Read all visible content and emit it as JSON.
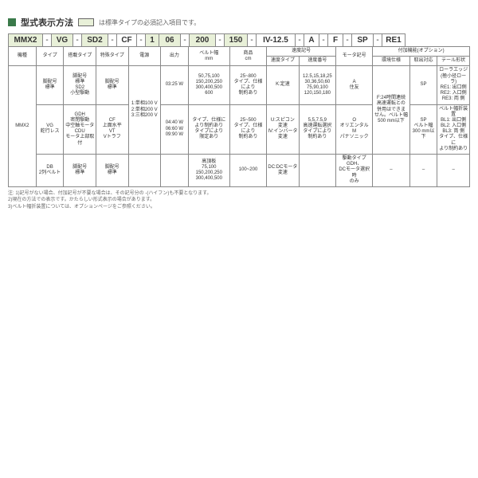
{
  "title": "型式表示方法",
  "tagline": "は標準タイプの必須記入項目です。",
  "model": [
    "MMX2",
    "-",
    "VG",
    "-",
    "SD2",
    "-",
    "CF",
    "-",
    "1",
    "06",
    "-",
    "200",
    "-",
    "150",
    "-",
    "IV-12.5",
    "-",
    "A",
    "-",
    "F",
    "-",
    "SP",
    "-",
    "RE1"
  ],
  "highlight": [
    true,
    false,
    true,
    false,
    true,
    false,
    false,
    false,
    true,
    true,
    false,
    true,
    false,
    true,
    false,
    false,
    false,
    false,
    false,
    false,
    false,
    false,
    false,
    false
  ],
  "widths": [
    38,
    8,
    22,
    8,
    28,
    8,
    20,
    8,
    12,
    22,
    8,
    28,
    8,
    24,
    8,
    44,
    8,
    14,
    8,
    14,
    8,
    22,
    8,
    24
  ],
  "headers_top": [
    "機種",
    "タイプ",
    "搭載タイプ",
    "特殊タイプ",
    "電源",
    "出力",
    "ベルト幅\nmm",
    "商品\ncm",
    "速度記号",
    "モータ記号",
    "付加機能(オプション)"
  ],
  "headers_sub_speed": [
    "速度タイプ",
    "速度番号"
  ],
  "headers_sub_option": [
    "環境仕様",
    "取出対応",
    "テール形状"
  ],
  "rows": [
    {
      "c0": "",
      "c1": "脚配号\n標準",
      "c2": "脚配号\n標準\nSD2\n小型駆動",
      "c3": "脚配号\n標準",
      "c4": "",
      "c5": "03:25 W",
      "c6": "50,75,100\n150,200,250\n300,400,500\n600",
      "c7": "25~800\nタイプ、仕様\nにより\n制約あり",
      "c8": "K:定速",
      "c9": "12.5,15,18,25\n30,36,50,60\n75,90,100\n120,150,180",
      "c10": "A\n住友",
      "c11": "F:24時間連続\n高速運転との\n併用はできま\nせん。ベルト幅\n500 mm以下",
      "c12": "SP",
      "c13": "ローラエッジ\n(極小径ローラ)\nRE1: 出口側\nRE2: 入口側\nRE3: 両 側"
    },
    {
      "c0": "MMX2",
      "c1": "VG\n蛇行レス",
      "c2": "GDH\n密閉駆動\n中空軸モータ\nCDU\nモータ上部取付",
      "c3": "CF\n上面水平\nVT\nVトラフ",
      "c4": "1:単相100 V\n2:単相200 V\n3:三相200 V",
      "c5": "04:40 W\n06:60 W\n09:90 W",
      "c6": "タイプ、仕様に\nより制約あり\nタイプにより\n限定あり",
      "c7": "25~500\nタイプ、仕様\nにより\n制約あり",
      "c8": "U:スピコン\n変速\nIV:インバータ\n変速",
      "c9": "5,5,7.5,9\n高速運転選択\nタイプにより\n制約あり",
      "c10": "O\nオリエンタル\nM\nパナソニック",
      "c11": "",
      "c12": "SP\nベルト幅\n300 mm以下",
      "c13": "ベルト幅折装置\nBL1: 出口側\nBL2: 入口側\nBL3: 両 側\nタイプ、仕様に\nより制約あり"
    },
    {
      "c0": "",
      "c1": "DB\n2列ベルト",
      "c2": "脚配号\n標準",
      "c3": "脚配号\n標準",
      "c4": "",
      "c5": "",
      "c6": "高頂板\n75,100\n150,200,250\n300,400,500",
      "c7": "100~200",
      "c8": "DC:DCモータ\n変速",
      "c9": "",
      "c10": "駆動タイプGDH、\nDCモータ選択時\nのみ",
      "c11": "–",
      "c12": "–",
      "c13": "–"
    }
  ],
  "notes": [
    "注: 1)記号がない場合、付加記号が不要な場合は、その記号分の -(ハイフン)も不要となります。",
    "    2)現在の方法での表示です。かたらしい形式表示の場合があります。",
    "    3)ベルト幅折装置については、オプションページをご参照ください。"
  ]
}
